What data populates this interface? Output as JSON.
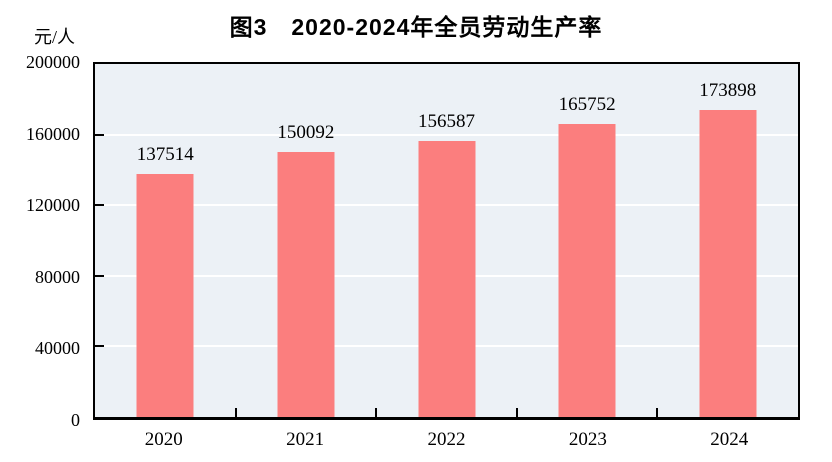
{
  "title": "图3　2020-2024年全员劳动生产率",
  "unit_label": "元/人",
  "chart_data": {
    "type": "bar",
    "title": "图3　2020-2024年全员劳动生产率",
    "categories": [
      "2020",
      "2021",
      "2022",
      "2023",
      "2024"
    ],
    "values": [
      137514,
      150092,
      156587,
      165752,
      173898
    ],
    "data_labels": [
      "137514",
      "150092",
      "156587",
      "165752",
      "173898"
    ],
    "xlabel": "",
    "ylabel": "元/人",
    "ylim": [
      0,
      200000
    ],
    "yticks": [
      0,
      40000,
      80000,
      120000,
      160000,
      200000
    ],
    "ytick_labels": [
      "0",
      "40000",
      "80000",
      "120000",
      "160000",
      "200000"
    ],
    "grid": true,
    "legend_position": "none",
    "bar_color": "#FB7E7E",
    "plot_bg_color": "#ECF1F6",
    "gridline_color": "#FFFFFF",
    "frame_color": "#000000",
    "text_color": "#000000"
  }
}
